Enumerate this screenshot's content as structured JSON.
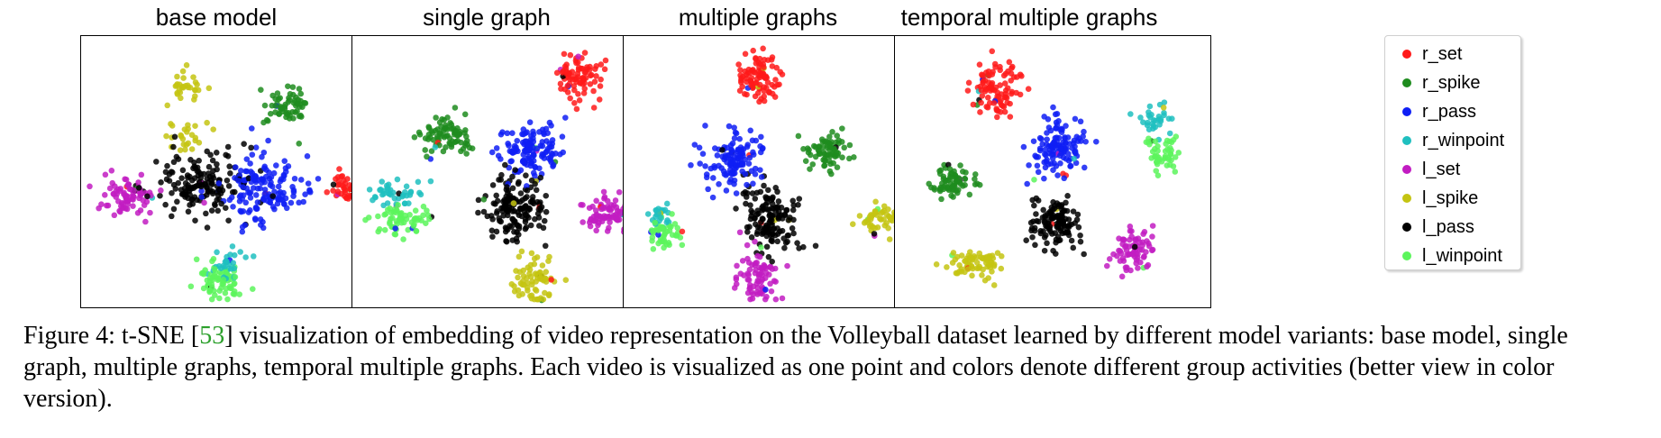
{
  "chart_data": [
    {
      "type": "scatter",
      "title": "base model",
      "series": [
        {
          "name": "r_set",
          "color": "#ff1a1a",
          "clusters": [
            {
              "x": 88,
              "y": 44,
              "sx": 4.5,
              "sy": 3.2,
              "n": 70
            }
          ]
        },
        {
          "name": "r_spike",
          "color": "#1e8c1e",
          "clusters": [
            {
              "x": 66,
              "y": 75,
              "sx": 4,
              "sy": 4,
              "n": 60
            }
          ]
        },
        {
          "name": "r_pass",
          "color": "#0f1ff5",
          "clusters": [
            {
              "x": 58,
              "y": 43,
              "sx": 7,
              "sy": 6.5,
              "n": 150
            }
          ]
        },
        {
          "name": "r_winpoint",
          "color": "#1fbfbf",
          "clusters": [
            {
              "x": 46,
              "y": 14,
              "sx": 3,
              "sy": 3.5,
              "n": 30
            }
          ]
        },
        {
          "name": "l_set",
          "color": "#c21cc2",
          "clusters": [
            {
              "x": 13,
              "y": 40,
              "sx": 4,
              "sy": 3.5,
              "n": 80
            }
          ]
        },
        {
          "name": "l_spike",
          "color": "#c4c412",
          "clusters": [
            {
              "x": 32,
              "y": 82,
              "sx": 3,
              "sy": 3.5,
              "n": 30
            },
            {
              "x": 32,
              "y": 63,
              "sx": 3,
              "sy": 3.5,
              "n": 25
            }
          ]
        },
        {
          "name": "l_pass",
          "color": "#000000",
          "clusters": [
            {
              "x": 38,
              "y": 45,
              "sx": 8,
              "sy": 7,
              "n": 150
            }
          ]
        },
        {
          "name": "l_winpoint",
          "color": "#5cf55c",
          "clusters": [
            {
              "x": 44,
              "y": 8,
              "sx": 4,
              "sy": 3.5,
              "n": 70
            }
          ]
        }
      ]
    },
    {
      "type": "scatter",
      "title": "single graph",
      "series": [
        {
          "name": "r_set",
          "color": "#ff1a1a",
          "clusters": [
            {
              "x": 72,
              "y": 86,
              "sx": 3.5,
              "sy": 4,
              "n": 80
            }
          ]
        },
        {
          "name": "r_spike",
          "color": "#1e8c1e",
          "clusters": [
            {
              "x": 30,
              "y": 64,
              "sx": 4,
              "sy": 4,
              "n": 80
            }
          ]
        },
        {
          "name": "r_pass",
          "color": "#0f1ff5",
          "clusters": [
            {
              "x": 57,
              "y": 59,
              "sx": 5,
              "sy": 5.5,
              "n": 130
            }
          ]
        },
        {
          "name": "r_winpoint",
          "color": "#1fbfbf",
          "clusters": [
            {
              "x": 12,
              "y": 42,
              "sx": 4,
              "sy": 2.5,
              "n": 40
            }
          ]
        },
        {
          "name": "l_set",
          "color": "#c21cc2",
          "clusters": [
            {
              "x": 82,
              "y": 34,
              "sx": 4,
              "sy": 3.5,
              "n": 80
            }
          ]
        },
        {
          "name": "l_spike",
          "color": "#c4c412",
          "clusters": [
            {
              "x": 58,
              "y": 8,
              "sx": 3.5,
              "sy": 4.5,
              "n": 70
            }
          ]
        },
        {
          "name": "l_pass",
          "color": "#000000",
          "clusters": [
            {
              "x": 52,
              "y": 36,
              "sx": 5,
              "sy": 6,
              "n": 150
            }
          ]
        },
        {
          "name": "l_winpoint",
          "color": "#5cf55c",
          "clusters": [
            {
              "x": 14,
              "y": 32,
              "sx": 4.5,
              "sy": 2.8,
              "n": 60
            }
          ]
        }
      ]
    },
    {
      "type": "scatter",
      "title": "multiple graphs",
      "series": [
        {
          "name": "r_set",
          "color": "#ff1a1a",
          "clusters": [
            {
              "x": 43,
              "y": 86,
              "sx": 3.5,
              "sy": 5,
              "n": 90
            }
          ]
        },
        {
          "name": "r_spike",
          "color": "#1e8c1e",
          "clusters": [
            {
              "x": 65,
              "y": 57,
              "sx": 4,
              "sy": 3.5,
              "n": 70
            }
          ]
        },
        {
          "name": "r_pass",
          "color": "#0f1ff5",
          "clusters": [
            {
              "x": 34,
              "y": 55,
              "sx": 5,
              "sy": 6,
              "n": 120
            }
          ]
        },
        {
          "name": "r_winpoint",
          "color": "#1fbfbf",
          "clusters": [
            {
              "x": 10,
              "y": 34,
              "sx": 2.5,
              "sy": 2.5,
              "n": 25
            }
          ]
        },
        {
          "name": "l_set",
          "color": "#c21cc2",
          "clusters": [
            {
              "x": 42,
              "y": 10,
              "sx": 3.5,
              "sy": 4.5,
              "n": 80
            }
          ]
        },
        {
          "name": "l_spike",
          "color": "#c4c412",
          "clusters": [
            {
              "x": 85,
              "y": 32,
              "sx": 5,
              "sy": 2.5,
              "n": 60
            }
          ]
        },
        {
          "name": "l_pass",
          "color": "#000000",
          "clusters": [
            {
              "x": 46,
              "y": 32,
              "sx": 4.5,
              "sy": 6.5,
              "n": 140
            }
          ]
        },
        {
          "name": "l_winpoint",
          "color": "#5cf55c",
          "clusters": [
            {
              "x": 12,
              "y": 26,
              "sx": 3,
              "sy": 3,
              "n": 45
            }
          ]
        }
      ]
    },
    {
      "type": "scatter",
      "title": "temporal multiple graphs",
      "series": [
        {
          "name": "r_set",
          "color": "#ff1a1a",
          "clusters": [
            {
              "x": 32,
              "y": 82,
              "sx": 4,
              "sy": 5,
              "n": 90
            }
          ]
        },
        {
          "name": "r_spike",
          "color": "#1e8c1e",
          "clusters": [
            {
              "x": 17,
              "y": 46,
              "sx": 4.5,
              "sy": 3,
              "n": 70
            }
          ]
        },
        {
          "name": "r_pass",
          "color": "#0f1ff5",
          "clusters": [
            {
              "x": 52,
              "y": 60,
              "sx": 4.5,
              "sy": 5.5,
              "n": 120
            }
          ]
        },
        {
          "name": "r_winpoint",
          "color": "#1fbfbf",
          "clusters": [
            {
              "x": 84,
              "y": 70,
              "sx": 3,
              "sy": 2.5,
              "n": 30
            }
          ]
        },
        {
          "name": "l_set",
          "color": "#c21cc2",
          "clusters": [
            {
              "x": 76,
              "y": 20,
              "sx": 3.5,
              "sy": 4.5,
              "n": 70
            }
          ]
        },
        {
          "name": "l_spike",
          "color": "#c4c412",
          "clusters": [
            {
              "x": 25,
              "y": 14,
              "sx": 5,
              "sy": 3,
              "n": 70
            }
          ]
        },
        {
          "name": "l_pass",
          "color": "#000000",
          "clusters": [
            {
              "x": 51,
              "y": 30,
              "sx": 4.5,
              "sy": 4.5,
              "n": 120
            }
          ]
        },
        {
          "name": "l_winpoint",
          "color": "#5cf55c",
          "clusters": [
            {
              "x": 86,
              "y": 57,
              "sx": 3,
              "sy": 3.5,
              "n": 45
            }
          ]
        }
      ]
    }
  ],
  "legend": {
    "placement": "right",
    "items": [
      {
        "label": "r_set",
        "color": "#ff1a1a"
      },
      {
        "label": "r_spike",
        "color": "#1e8c1e"
      },
      {
        "label": "r_pass",
        "color": "#0f1ff5"
      },
      {
        "label": "r_winpoint",
        "color": "#1fbfbf"
      },
      {
        "label": "l_set",
        "color": "#c21cc2"
      },
      {
        "label": "l_spike",
        "color": "#c4c412"
      },
      {
        "label": "l_pass",
        "color": "#000000"
      },
      {
        "label": "l_winpoint",
        "color": "#5cf55c"
      }
    ]
  },
  "caption": {
    "prefix": "Figure 4: t-SNE [",
    "cite": "53",
    "text": "] visualization of embedding of video representation on the Volleyball dataset learned by different model variants: base model, single graph, multiple graphs, temporal multiple graphs. Each video is visualized as one point and colors denote different group activities (better view in color version)."
  }
}
